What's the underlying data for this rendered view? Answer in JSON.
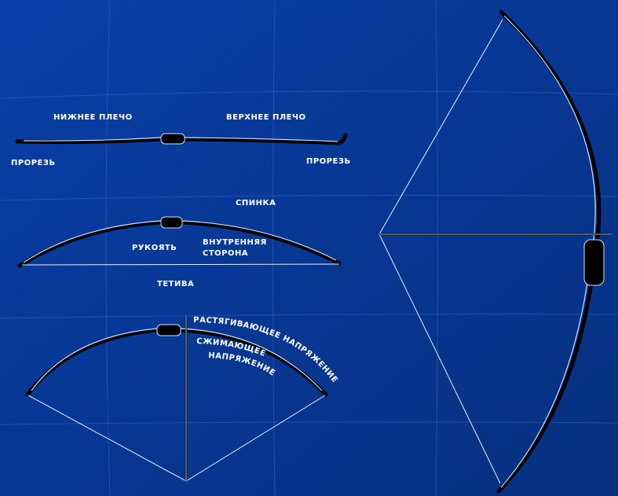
{
  "labels": {
    "lower_limb": "НИЖНЕЕ ПЛЕЧО",
    "upper_limb": "ВЕРХНЕЕ ПЛЕЧО",
    "nock_left": "ПРОРЕЗЬ",
    "nock_right": "ПРОРЕЗЬ",
    "back": "СПИНКА",
    "handle": "РУКОЯТЬ",
    "belly_line1": "ВНУТРЕННЯЯ",
    "belly_line2": "СТОРОНА",
    "string": "ТЕТИВА",
    "tension": "РАСТЯГИВАЮЩЕЕ НАПРЯЖЕНИЕ",
    "compression_line1": "СЖИМАЮЩЕЕ",
    "compression_line2": "НАПРЯЖЕНИЕ"
  }
}
